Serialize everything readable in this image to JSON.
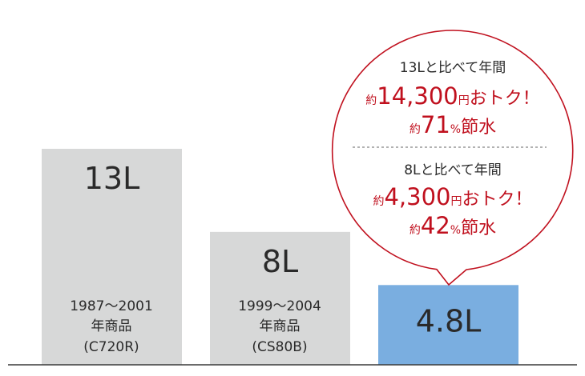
{
  "chart_data": {
    "type": "bar",
    "categories": [
      "13L",
      "8L",
      "4.8L"
    ],
    "values": [
      13,
      8,
      4.8
    ],
    "value_labels": [
      "13L",
      "8L",
      "4.8L"
    ],
    "ylim": [
      0,
      13
    ],
    "descriptions": [
      [
        "1987～2001",
        "年商品",
        "(C720R)"
      ],
      [
        "1999～2004",
        "年商品",
        "(CS80B)"
      ],
      []
    ],
    "colors": {
      "old_bar": "#d7d8d8",
      "new_bar": "#7aaee0",
      "accent": "#c0101e",
      "baseline": "#3a3a3a"
    },
    "callout": {
      "sections": [
        {
          "heading": "13Lと比べて年間",
          "savings": {
            "prefix": "約",
            "amount": "14,300",
            "unit": "円",
            "suffix": "おトク！"
          },
          "water": {
            "prefix": "約",
            "percent": "71",
            "unit": "%",
            "suffix": "節水"
          }
        },
        {
          "heading": "8Lと比べて年間",
          "savings": {
            "prefix": "約",
            "amount": "4,300",
            "unit": "円",
            "suffix": "おトク！"
          },
          "water": {
            "prefix": "約",
            "percent": "42",
            "unit": "%",
            "suffix": "節水"
          }
        }
      ]
    }
  }
}
